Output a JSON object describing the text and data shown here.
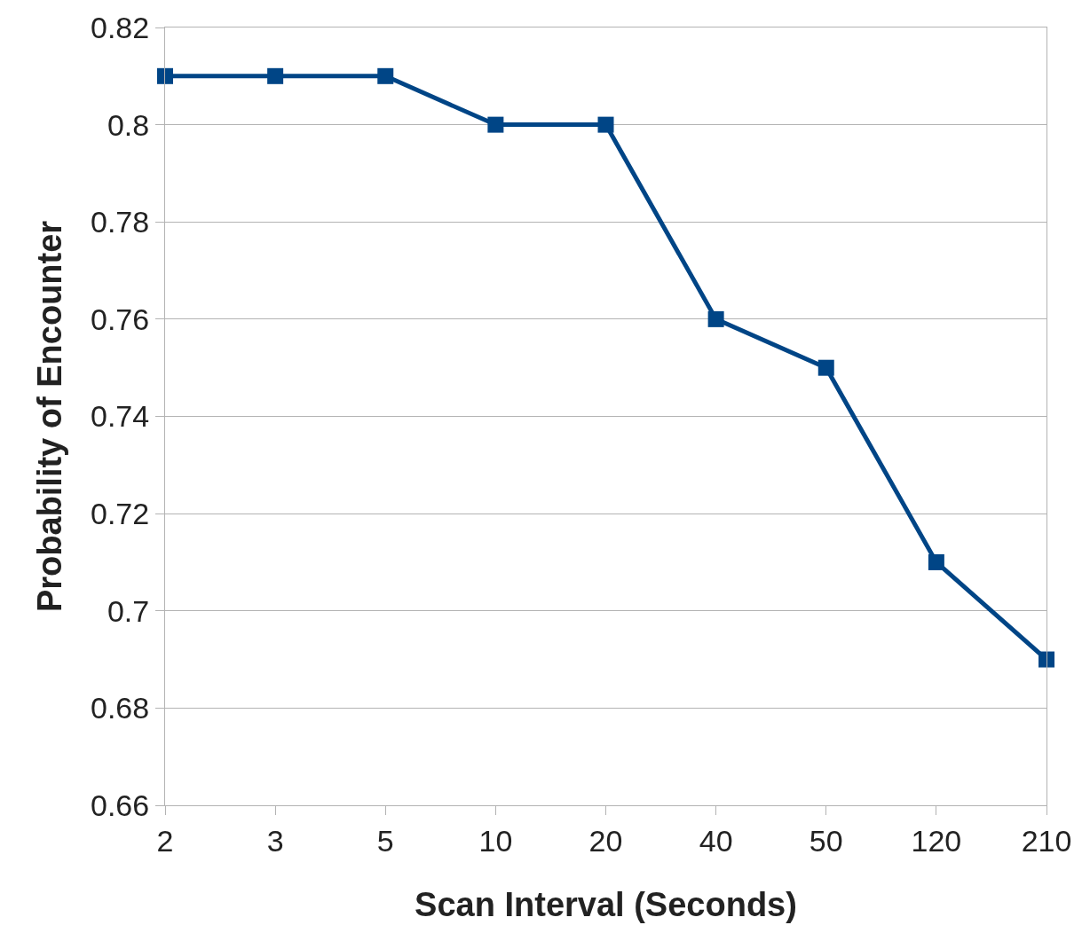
{
  "chart_data": {
    "type": "line",
    "xlabel": "Scan Interval (Seconds)",
    "ylabel": "Probability of Encounter",
    "categories": [
      "2",
      "3",
      "5",
      "10",
      "20",
      "40",
      "50",
      "120",
      "210"
    ],
    "series": [
      {
        "color": "#004586",
        "values": [
          0.81,
          0.81,
          0.81,
          0.8,
          0.8,
          0.76,
          0.75,
          0.71,
          0.69
        ]
      }
    ],
    "ylim": [
      0.66,
      0.82
    ],
    "yticks": [
      0.66,
      0.68,
      0.7,
      0.72,
      0.74,
      0.76,
      0.78,
      0.8,
      0.82
    ],
    "grid": "y",
    "marker": "square",
    "line_style": "solid"
  }
}
